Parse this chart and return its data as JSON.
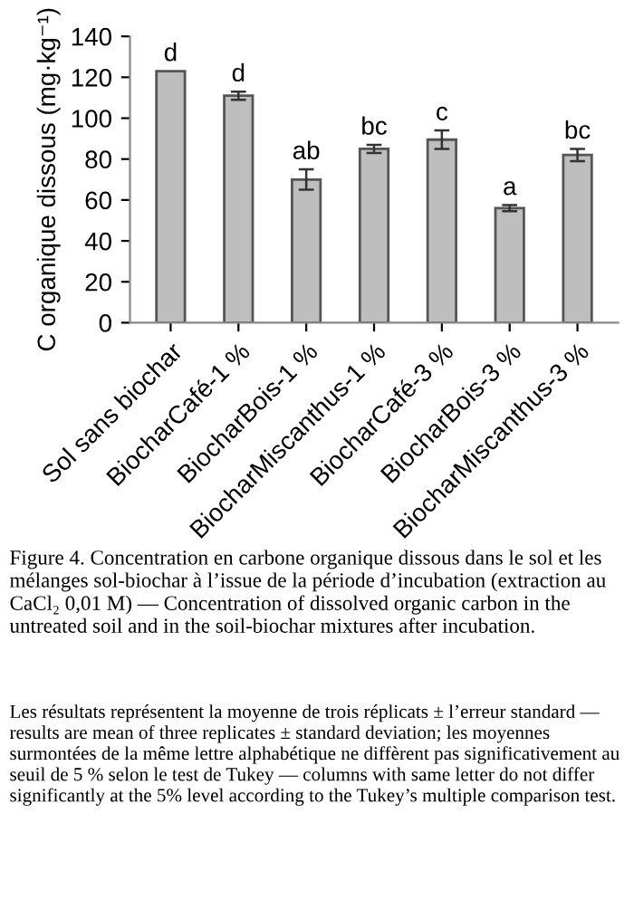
{
  "chart_data": {
    "type": "bar",
    "categories": [
      "Sol sans biochar",
      "BiocharCafé-1 %",
      "BiocharBois-1 %",
      "BiocharMiscanthus-1 %",
      "BiocharCafé-3 %",
      "BiocharBois-3 %",
      "BiocharMiscanthus-3 %"
    ],
    "values": [
      123,
      111,
      70,
      85,
      89.5,
      56,
      82
    ],
    "errors": [
      null,
      2,
      5,
      2,
      4.5,
      1.5,
      3
    ],
    "color": "#bebebe",
    "ylabel": "C organique dissous (mg·kg⁻¹)",
    "ylim": [
      0,
      140
    ],
    "yticks": [
      0,
      20,
      40,
      60,
      80,
      100,
      120,
      140
    ],
    "grid": false,
    "legend": false,
    "annotations": [
      {
        "text": "d",
        "x": "Sol sans biochar",
        "y": 123
      },
      {
        "text": "d",
        "x": "BiocharCafé-1 %",
        "y": 113
      },
      {
        "text": "ab",
        "x": "BiocharBois-1 %",
        "y": 75
      },
      {
        "text": "bc",
        "x": "BiocharMiscanthus-1 %",
        "y": 87
      },
      {
        "text": "c",
        "x": "BiocharCafé-3 %",
        "y": 94
      },
      {
        "text": "a",
        "x": "BiocharBois-3 %",
        "y": 57.5
      },
      {
        "text": "bc",
        "x": "BiocharMiscanthus-3 %",
        "y": 85
      },
      "Figure 4. Concentration en carbone organique dissous dans le sol et les mélanges sol-biochar à l’issue de la période d’incubation (extraction au CaCl₂ 0,01 M) — Concentration of dissolved organic carbon in the untreated soil and in the soil-biochar mixtures after incubation.",
      "Les résultats représentent la moyenne de trois réplicats ± l’erreur standard — results are mean of three replicates ± standard deviation; les moyennes surmontées de la même lettre alphabétique ne diffèrent pas significativement au seuil de 5 % selon le test de Tukey — columns with same letter do not differ significantly at the 5% level according to the Tukey’s multiple comparison test."
    ]
  }
}
